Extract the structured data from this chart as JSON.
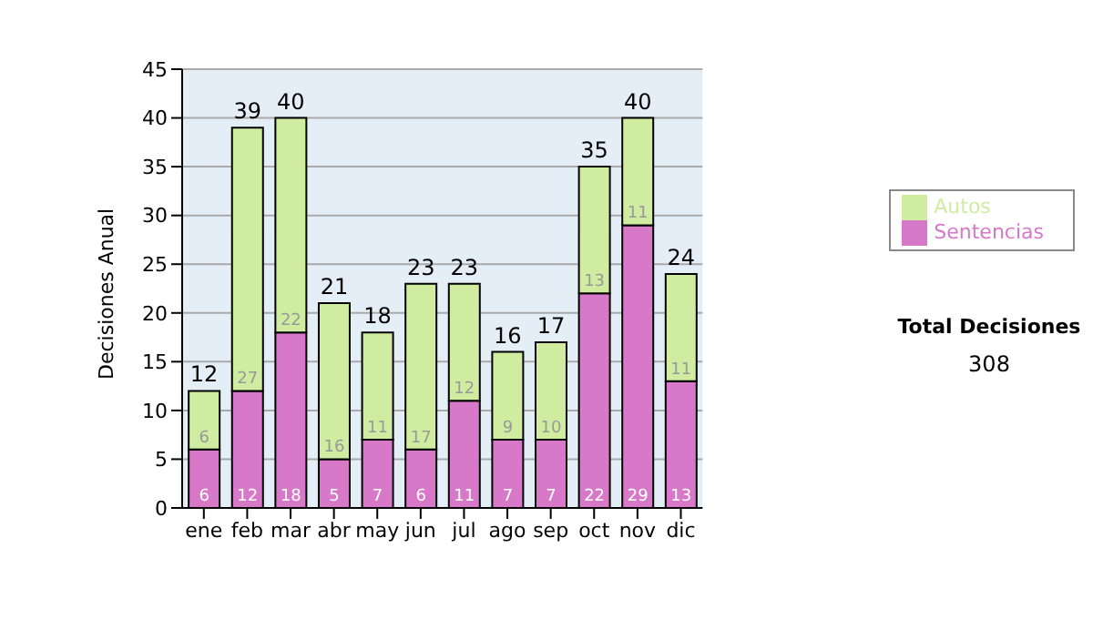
{
  "chart_data": {
    "type": "bar",
    "stacked": true,
    "ylabel": "Decisiones Anual",
    "categories": [
      "ene",
      "feb",
      "mar",
      "abr",
      "may",
      "jun",
      "jul",
      "ago",
      "sep",
      "oct",
      "nov",
      "dic"
    ],
    "series": [
      {
        "name": "Sentencias",
        "color": "#d878c8",
        "values": [
          6,
          12,
          18,
          5,
          7,
          6,
          11,
          7,
          7,
          22,
          29,
          13
        ]
      },
      {
        "name": "Autos",
        "color": "#d0eca0",
        "values": [
          6,
          27,
          22,
          16,
          11,
          17,
          12,
          9,
          10,
          13,
          11,
          11
        ]
      }
    ],
    "ylim": [
      0,
      45
    ],
    "yticks": [
      0,
      5,
      10,
      15,
      20,
      25,
      30,
      35,
      40,
      45
    ],
    "grid": "y",
    "legend": "right",
    "data_labels": true,
    "totals": [
      "12",
      "39",
      "40",
      "21",
      "18",
      "23",
      "23",
      "16",
      "17",
      "35",
      "40",
      "24"
    ],
    "annotations": [
      "Total Decisiones",
      "308"
    ]
  }
}
